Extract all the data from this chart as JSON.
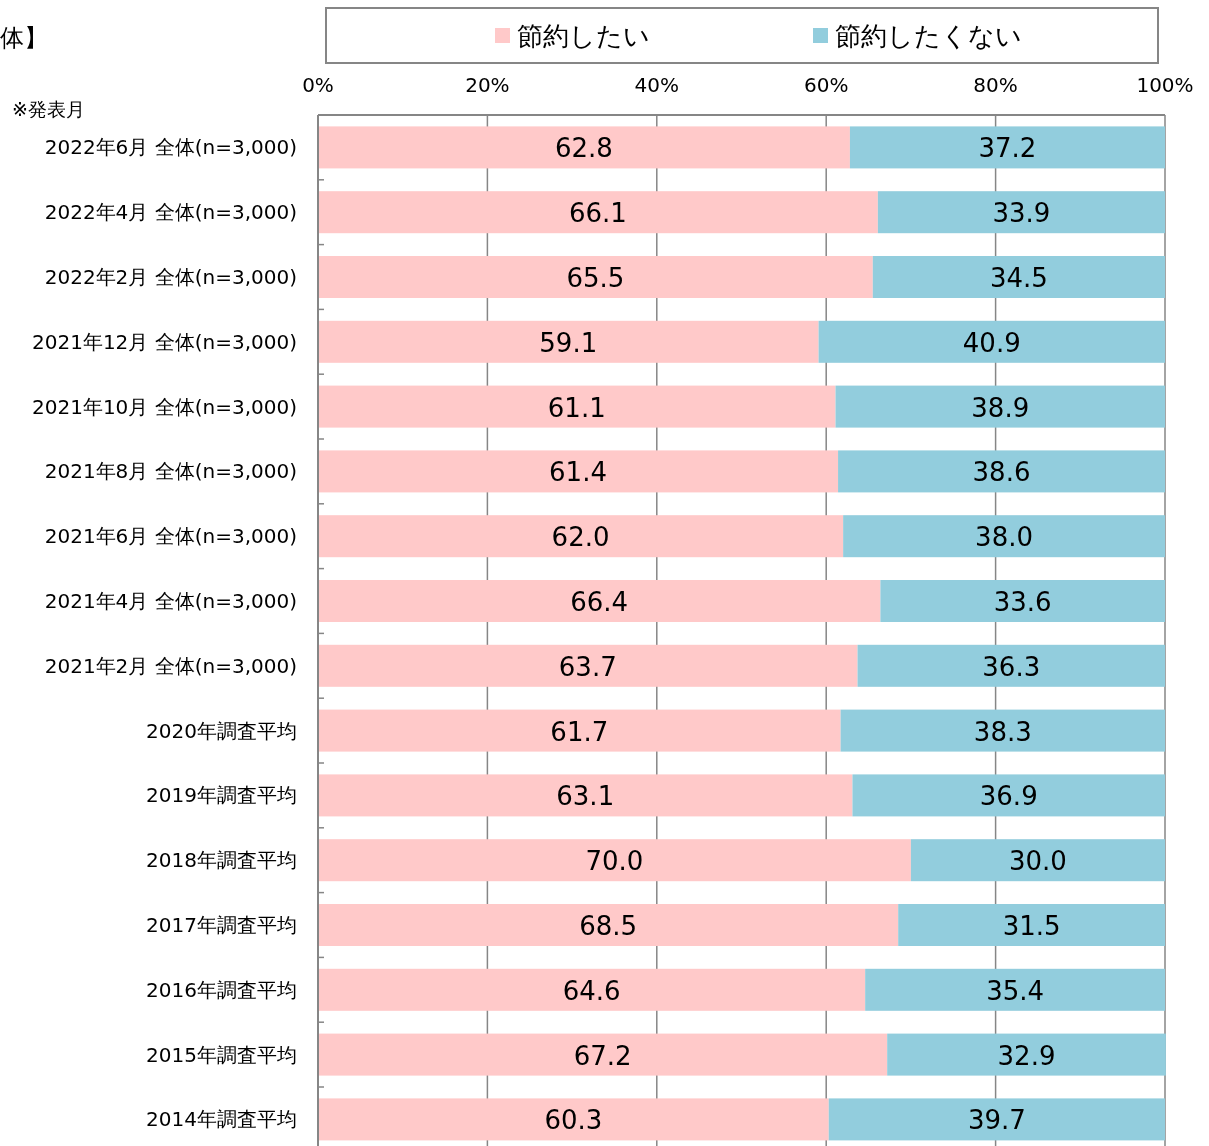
{
  "chart_data": {
    "type": "bar",
    "orientation": "horizontal",
    "stacked": true,
    "title": "体】",
    "annotations": [
      "※発表月"
    ],
    "categories": [
      "2022年6月  全体(n=3,000)",
      "2022年4月  全体(n=3,000)",
      "2022年2月  全体(n=3,000)",
      "2021年12月  全体(n=3,000)",
      "2021年10月  全体(n=3,000)",
      "2021年8月  全体(n=3,000)",
      "2021年6月  全体(n=3,000)",
      "2021年4月  全体(n=3,000)",
      "2021年2月  全体(n=3,000)",
      "2020年調査平均",
      "2019年調査平均",
      "2018年調査平均",
      "2017年調査平均",
      "2016年調査平均",
      "2015年調査平均",
      "2014年調査平均"
    ],
    "series": [
      {
        "name": "節約したい",
        "color": "#ffc9c9",
        "values": [
          62.8,
          66.1,
          65.5,
          59.1,
          61.1,
          61.4,
          62.0,
          66.4,
          63.7,
          61.7,
          63.1,
          70.0,
          68.5,
          64.6,
          67.2,
          60.3
        ],
        "value_labels": [
          "62.8",
          "66.1",
          "65.5",
          "59.1",
          "61.1",
          "61.4",
          "62.0",
          "66.4",
          "63.7",
          "61.7",
          "63.1",
          "70.0",
          "68.5",
          "64.6",
          "67.2",
          "60.3"
        ]
      },
      {
        "name": "節約したくない",
        "color": "#92cddd",
        "values": [
          37.2,
          33.9,
          34.5,
          40.9,
          38.9,
          38.6,
          38.0,
          33.6,
          36.3,
          38.3,
          36.9,
          30.0,
          31.5,
          35.4,
          32.9,
          39.7
        ],
        "value_labels": [
          "37.2",
          "33.9",
          "34.5",
          "40.9",
          "38.9",
          "38.6",
          "38.0",
          "33.6",
          "36.3",
          "38.3",
          "36.9",
          "30.0",
          "31.5",
          "35.4",
          "32.9",
          "39.7"
        ]
      }
    ],
    "xlim": [
      0,
      100
    ],
    "xticks": [
      {
        "value": 0,
        "label": "0%"
      },
      {
        "value": 20,
        "label": "20%"
      },
      {
        "value": 40,
        "label": "40%"
      },
      {
        "value": 60,
        "label": "60%"
      },
      {
        "value": 80,
        "label": "80%"
      },
      {
        "value": 100,
        "label": "100%"
      }
    ],
    "grid": "x",
    "legend": "top"
  }
}
